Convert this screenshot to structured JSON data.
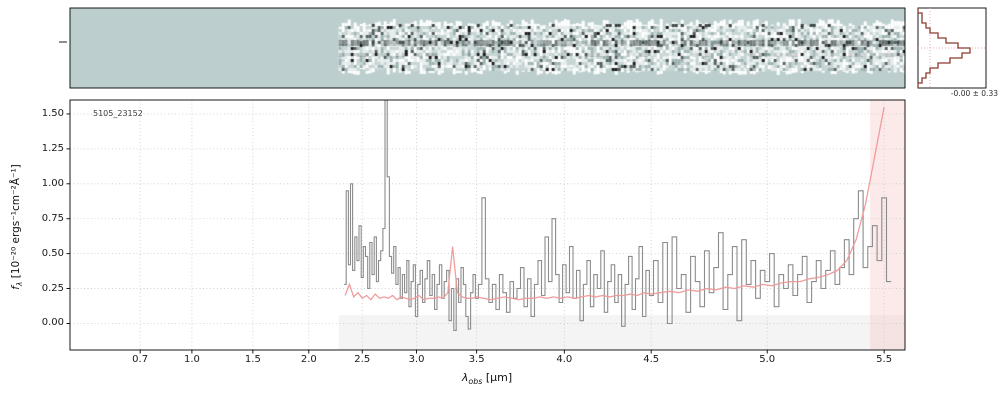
{
  "title_id": "5105_23152",
  "stat_label": "-0.00 ± 0.33",
  "axes": {
    "xlabel": {
      "prefix": "λ",
      "sub": "obs",
      "suffix": " [μm]"
    },
    "ylabel": {
      "prefix": "f",
      "sub": "λ",
      "suffix": " [10⁻²⁰ ergs⁻¹cm⁻²Å⁻¹]"
    },
    "x_ticks": [
      {
        "value": 0.7,
        "label": "0.7"
      },
      {
        "value": 1.0,
        "label": "1.0"
      },
      {
        "value": 1.5,
        "label": "1.5"
      },
      {
        "value": 2.0,
        "label": "2.0"
      },
      {
        "value": 2.5,
        "label": "2.5"
      },
      {
        "value": 3.0,
        "label": "3.0"
      },
      {
        "value": 3.5,
        "label": "3.5"
      },
      {
        "value": 4.0,
        "label": "4.0"
      },
      {
        "value": 4.5,
        "label": "4.5"
      },
      {
        "value": 5.0,
        "label": "5.0"
      },
      {
        "value": 5.5,
        "label": "5.5"
      }
    ],
    "y_ticks": [
      {
        "value": 0.0,
        "label": "0.00"
      },
      {
        "value": 0.25,
        "label": "0.25"
      },
      {
        "value": 0.5,
        "label": "0.50"
      },
      {
        "value": 0.75,
        "label": "0.75"
      },
      {
        "value": 1.0,
        "label": "1.00"
      },
      {
        "value": 1.25,
        "label": "1.25"
      },
      {
        "value": 1.5,
        "label": "1.50"
      }
    ]
  },
  "chart_data": {
    "type": "line",
    "title": "",
    "xlabel": "λ_obs [μm]",
    "ylabel": "f_λ [10⁻²⁰ ergs⁻¹cm⁻²Å⁻¹]",
    "xlim": [
      0.3,
      5.589
    ],
    "ylim": [
      -0.19,
      1.6
    ],
    "grid": "dotted",
    "x_axis": {
      "note": "non-linear prism wavelength axis; [wavelength_um, axis_fraction]",
      "control_points": [
        [
          0.3,
          0.0
        ],
        [
          0.7,
          0.084
        ],
        [
          1.0,
          0.146
        ],
        [
          1.5,
          0.219
        ],
        [
          2.0,
          0.286
        ],
        [
          2.5,
          0.35
        ],
        [
          3.0,
          0.415
        ],
        [
          3.5,
          0.487
        ],
        [
          4.0,
          0.592
        ],
        [
          4.5,
          0.696
        ],
        [
          5.0,
          0.835
        ],
        [
          5.5,
          0.975
        ],
        [
          5.589,
          1.0
        ]
      ]
    },
    "series": [
      {
        "name": "observed_spectrum",
        "color": "#8c8c8c",
        "style": "steps-mid",
        "x_start": 2.34,
        "x_step": 0.02,
        "values": [
          0.28,
          0.95,
          0.42,
          1.0,
          0.38,
          0.62,
          0.45,
          0.7,
          0.33,
          0.55,
          0.48,
          0.25,
          0.58,
          0.35,
          0.62,
          0.3,
          0.45,
          0.52,
          0.68,
          1.6,
          1.05,
          0.48,
          0.36,
          0.55,
          0.28,
          0.4,
          0.18,
          0.35,
          0.22,
          0.45,
          0.12,
          0.3,
          0.42,
          0.05,
          0.28,
          0.38,
          0.15,
          0.32,
          0.45,
          0.2,
          0.35,
          0.1,
          0.28,
          0.42,
          0.18,
          0.3,
          0.38,
          0.02,
          0.25,
          -0.05,
          0.32,
          0.15,
          0.4,
          0.28,
          0.05,
          -0.04,
          0.22,
          0.35,
          0.18,
          0.28,
          0.9,
          0.32,
          0.15,
          0.28,
          0.1,
          0.35,
          0.22,
          0.08,
          0.3,
          0.18,
          0.25,
          0.4,
          0.12,
          0.32,
          0.05,
          0.28,
          0.45,
          0.2,
          0.62,
          0.3,
          0.75,
          0.35,
          0.15,
          0.42,
          0.22,
          0.55,
          0.18,
          0.38,
          0.02,
          0.28,
          0.45,
          0.12,
          0.35,
          0.25,
          0.52,
          0.08,
          0.3,
          0.42,
          0.15,
          0.35,
          -0.02,
          0.28,
          0.48,
          0.1,
          0.32,
          0.55,
          0.05,
          0.38,
          0.2,
          0.45,
          0.15,
          0.58,
          0.0,
          0.62,
          0.25,
          0.35,
          0.08,
          0.48,
          0.3,
          0.12,
          0.52,
          0.22,
          0.4,
          0.65,
          0.1,
          0.35,
          0.55,
          0.02,
          0.6,
          0.28,
          0.45,
          0.18,
          0.38,
          0.3,
          0.5,
          0.12,
          0.35,
          0.25,
          0.42,
          0.2,
          0.35,
          0.48,
          0.15,
          0.3,
          0.45,
          0.25,
          0.38,
          0.52,
          0.28,
          0.4,
          0.6,
          0.35,
          0.75,
          0.95,
          0.4,
          0.55,
          0.7,
          0.45,
          0.9,
          0.3
        ]
      },
      {
        "name": "error_spectrum",
        "color": "#f09898",
        "style": "line",
        "x_start": 2.34,
        "x_step": 0.04,
        "values": [
          0.2,
          0.28,
          0.19,
          0.22,
          0.18,
          0.2,
          0.17,
          0.21,
          0.18,
          0.19,
          0.18,
          0.2,
          0.17,
          0.19,
          0.18,
          0.17,
          0.18,
          0.2,
          0.17,
          0.18,
          0.18,
          0.19,
          0.18,
          0.22,
          0.55,
          0.22,
          0.19,
          0.18,
          0.18,
          0.19,
          0.18,
          0.17,
          0.18,
          0.19,
          0.18,
          0.17,
          0.18,
          0.18,
          0.19,
          0.18,
          0.19,
          0.18,
          0.19,
          0.18,
          0.19,
          0.2,
          0.19,
          0.2,
          0.19,
          0.2,
          0.2,
          0.21,
          0.2,
          0.22,
          0.21,
          0.22,
          0.23,
          0.22,
          0.24,
          0.23,
          0.25,
          0.24,
          0.26,
          0.25,
          0.27,
          0.26,
          0.28,
          0.27,
          0.29,
          0.3,
          0.3,
          0.32,
          0.33,
          0.35,
          0.38,
          0.45,
          0.6,
          0.85,
          1.2,
          1.55
        ]
      }
    ],
    "shaded_regions": [
      {
        "name": "zero-band",
        "x0": 2.28,
        "x1": 5.589,
        "y0": -0.19,
        "y1": 0.06,
        "color": "#ededed",
        "opacity": 0.6
      },
      {
        "name": "edge-band",
        "x0": 5.44,
        "x1": 5.589,
        "y0": -0.19,
        "y1": 1.6,
        "color": "#f6c0c0",
        "opacity": 0.35
      }
    ],
    "twod_panel": {
      "background": "#bccfce",
      "x_range": [
        2.28,
        5.589
      ],
      "seed": 12345
    },
    "histogram": {
      "counts": [
        0,
        1,
        2,
        3,
        5,
        8,
        11,
        13,
        10,
        7,
        5,
        3,
        2,
        1,
        1,
        0
      ],
      "color": "#8b3a2e",
      "guide_color": "#f0a8a8",
      "stat": "-0.00 ± 0.33"
    }
  }
}
